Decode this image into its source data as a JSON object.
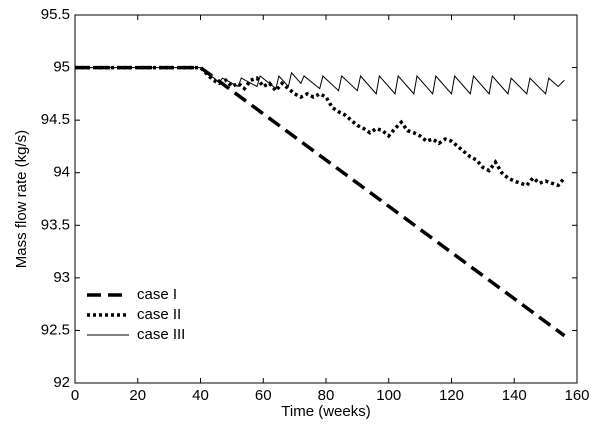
{
  "chart_data": {
    "type": "line",
    "xlabel": "Time (weeks)",
    "ylabel": "Mass flow rate (kg/s)",
    "xlim": [
      0,
      160
    ],
    "xticks": [
      0,
      20,
      40,
      60,
      80,
      100,
      120,
      140,
      160
    ],
    "ylim": [
      92,
      95.5
    ],
    "yticks": [
      92,
      92.5,
      93,
      93.5,
      94,
      94.5,
      95,
      95.5
    ],
    "legend": "lower left",
    "series": [
      {
        "name": "case I",
        "color": "#000000",
        "style": "dashed",
        "x": [
          0,
          40,
          156
        ],
        "values": [
          95,
          95,
          92.45
        ]
      },
      {
        "name": "case II",
        "color": "#000000",
        "style": "dotted",
        "x": [
          0,
          40,
          44,
          46,
          48,
          50,
          52,
          54,
          56,
          58,
          60,
          62,
          64,
          66,
          68,
          70,
          72,
          74,
          76,
          78,
          80,
          82,
          84,
          86,
          88,
          90,
          92,
          94,
          96,
          98,
          100,
          102,
          104,
          106,
          108,
          110,
          112,
          114,
          116,
          118,
          120,
          122,
          124,
          126,
          128,
          130,
          132,
          134,
          136,
          138,
          140,
          142,
          144,
          146,
          148,
          150,
          152,
          154,
          156
        ],
        "values": [
          95,
          95,
          94.88,
          94.85,
          94.88,
          94.82,
          94.85,
          94.8,
          94.88,
          94.9,
          94.82,
          94.85,
          94.78,
          94.85,
          94.8,
          94.75,
          94.72,
          94.75,
          94.72,
          94.75,
          94.72,
          94.62,
          94.58,
          94.55,
          94.5,
          94.45,
          94.42,
          94.38,
          94.42,
          94.4,
          94.35,
          94.42,
          94.48,
          94.4,
          94.38,
          94.35,
          94.3,
          94.32,
          94.28,
          94.32,
          94.3,
          94.25,
          94.2,
          94.15,
          94.12,
          94.05,
          94.02,
          94.1,
          94.0,
          93.95,
          93.92,
          93.9,
          93.88,
          93.95,
          93.9,
          93.92,
          93.9,
          93.88,
          93.95
        ]
      },
      {
        "name": "case III",
        "color": "#000000",
        "style": "solid",
        "x": [
          0,
          40,
          46,
          47,
          52,
          53,
          58,
          59,
          64,
          65,
          68,
          69,
          72,
          73,
          78,
          79,
          84,
          85,
          90,
          91,
          96,
          97,
          102,
          103,
          108,
          109,
          114,
          115,
          120,
          121,
          126,
          127,
          132,
          133,
          138,
          139,
          144,
          145,
          150,
          151,
          154,
          156
        ],
        "values": [
          95,
          95,
          94.86,
          94.9,
          94.82,
          94.9,
          94.82,
          94.92,
          94.8,
          94.92,
          94.82,
          94.95,
          94.85,
          94.92,
          94.8,
          94.92,
          94.78,
          94.92,
          94.78,
          94.92,
          94.75,
          94.92,
          94.75,
          94.92,
          94.75,
          94.92,
          94.75,
          94.92,
          94.75,
          94.92,
          94.75,
          94.92,
          94.75,
          94.92,
          94.75,
          94.9,
          94.75,
          94.9,
          94.75,
          94.9,
          94.82,
          94.88
        ]
      }
    ]
  }
}
